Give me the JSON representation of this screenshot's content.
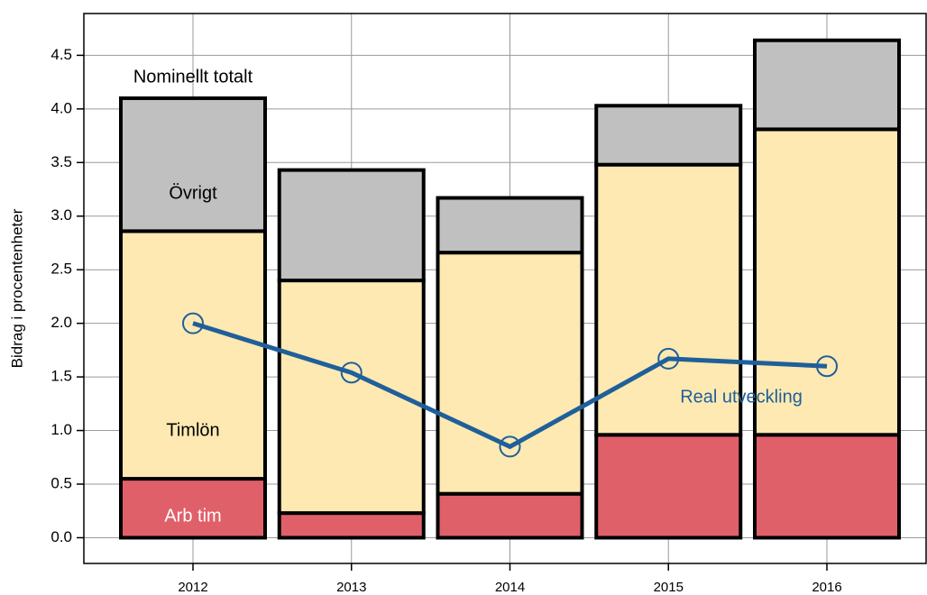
{
  "chart_data": {
    "type": "bar",
    "stacked": true,
    "y_label": "Bidrag i procentenheter",
    "annotation": "Nominellt totalt",
    "categories": [
      "2012",
      "2013",
      "2014",
      "2015",
      "2016"
    ],
    "series": [
      {
        "name": "Arb tim",
        "color": "#e0606a",
        "values": [
          0.55,
          0.23,
          0.41,
          0.96,
          0.96
        ]
      },
      {
        "name": "Timlön",
        "color": "#fde9b1",
        "values": [
          2.31,
          2.17,
          2.25,
          2.52,
          2.85
        ]
      },
      {
        "name": "Övrigt",
        "color": "#c0c0c0",
        "values": [
          1.24,
          1.03,
          0.51,
          0.55,
          0.83
        ]
      },
      {
        "name": "Real utveckling",
        "type": "line",
        "color": "#1f5f9a",
        "values": [
          2.0,
          1.54,
          0.85,
          1.67,
          1.6
        ]
      }
    ],
    "ylim": [
      -0.24,
      4.89
    ],
    "yticks": [
      {
        "value": 0,
        "label": "0.0"
      },
      0.5,
      {
        "value": 1,
        "label": "1.0"
      },
      1.5,
      {
        "value": 2,
        "label": "2.0"
      },
      2.5,
      {
        "value": 3,
        "label": "3.0"
      },
      3.5,
      {
        "value": 4,
        "label": "4.0"
      },
      4.5
    ],
    "grid": true
  }
}
